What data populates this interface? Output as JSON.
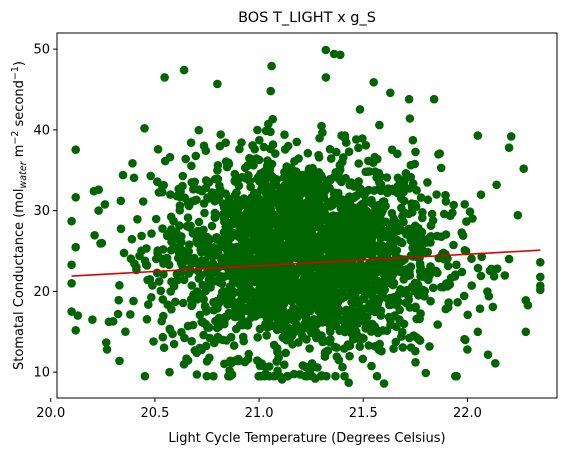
{
  "chart_data": {
    "type": "scatter",
    "title": "BOS T_LIGHT x g_S",
    "xlabel": "Light Cycle Temperature (Degrees Celsius)",
    "ylabel": {
      "prefix": "Stomatal Conductance (mol",
      "subscript": "water",
      "middle": " m",
      "superscript1": "−2",
      "after": " second",
      "superscript2": "−1",
      "suffix": ")"
    },
    "xlim": [
      20.03,
      22.43
    ],
    "ylim": [
      6.8,
      52.0
    ],
    "xticks": [
      20.0,
      20.5,
      21.0,
      21.5,
      22.0
    ],
    "xtick_labels": [
      "20.0",
      "20.5",
      "21.0",
      "21.5",
      "22.0"
    ],
    "yticks": [
      10,
      20,
      30,
      40,
      50
    ],
    "ytick_labels": [
      "10",
      "20",
      "30",
      "40",
      "50"
    ],
    "grid": false,
    "series": [
      {
        "kind": "scatter",
        "color": "#006400",
        "distribution": {
          "x_mean": 21.2,
          "x_sd": 0.33,
          "y_mean": 24.5,
          "y_sd": 6.2,
          "n": 2600
        },
        "points": [
          [
            20.1,
            28.7
          ],
          [
            20.1,
            23.3
          ],
          [
            20.1,
            21.0
          ],
          [
            20.1,
            17.5
          ],
          [
            20.13,
            17.0
          ],
          [
            20.2,
            16.5
          ],
          [
            20.23,
            32.6
          ],
          [
            20.27,
            12.8
          ],
          [
            20.3,
            16.3
          ],
          [
            20.33,
            11.4
          ],
          [
            20.45,
            40.2
          ],
          [
            20.48,
            34.3
          ],
          [
            20.57,
            10.0
          ],
          [
            20.64,
            47.4
          ],
          [
            20.8,
            45.7
          ],
          [
            20.87,
            9.7
          ],
          [
            21.06,
            47.9
          ],
          [
            21.11,
            9.1
          ],
          [
            21.27,
            9.2
          ],
          [
            21.3,
            9.6
          ],
          [
            21.32,
            49.9
          ],
          [
            21.36,
            49.4
          ],
          [
            21.39,
            49.3
          ],
          [
            21.43,
            8.7
          ],
          [
            21.55,
            45.9
          ],
          [
            21.6,
            8.6
          ],
          [
            21.63,
            44.6
          ],
          [
            21.72,
            43.8
          ],
          [
            21.75,
            12.6
          ],
          [
            21.8,
            9.9
          ],
          [
            21.84,
            43.8
          ],
          [
            22.0,
            12.8
          ],
          [
            22.05,
            39.3
          ],
          [
            22.05,
            15.0
          ],
          [
            22.14,
            33.2
          ],
          [
            22.2,
            24.0
          ],
          [
            22.21,
            39.2
          ],
          [
            22.2,
            37.8
          ],
          [
            22.27,
            35.2
          ],
          [
            22.28,
            18.9
          ],
          [
            22.28,
            15.0
          ],
          [
            22.35,
            23.6
          ],
          [
            22.35,
            21.8
          ],
          [
            22.35,
            20.7
          ],
          [
            22.35,
            20.2
          ]
        ]
      }
    ],
    "trendline": {
      "color": "#dd0000",
      "x": [
        20.1,
        22.35
      ],
      "y": [
        21.9,
        25.1
      ]
    }
  }
}
